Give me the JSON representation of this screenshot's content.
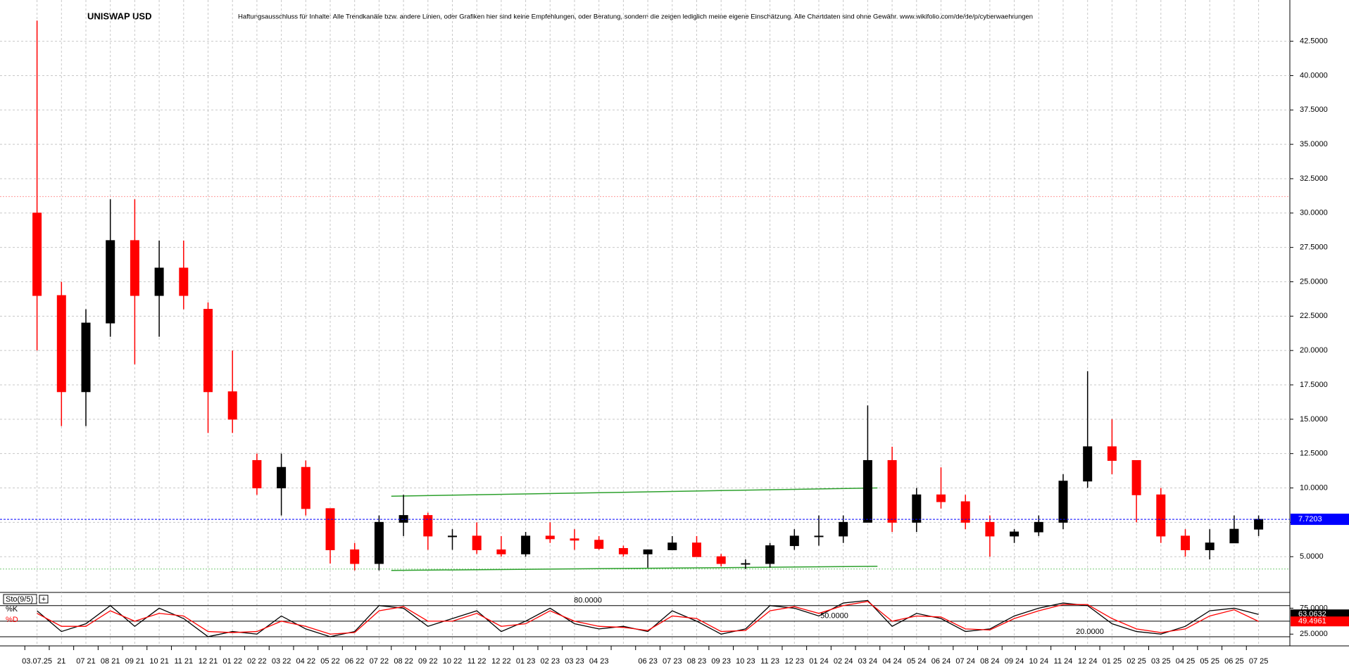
{
  "chart_data": [
    {
      "type": "candlestick",
      "title": "UNISWAP USD",
      "subtitle": "Haftungsausschluss für Inhalte: Alle Trendkanäle bzw. andere Linien, oder Grafiken hier sind keine Empfehlungen, oder Beratung, sondern die zeigen lediglich meine eigene Einschätzung. Alle Chartdaten sind ohne Gewähr.  www.wikifolio.com/de/de/p/cyberwaehrungen",
      "categories": [
        "03.07.25",
        "21",
        "07 21",
        "08 21",
        "09 21",
        "10 21",
        "11 21",
        "12 21",
        "01 22",
        "02 22",
        "03 22",
        "04 22",
        "05 22",
        "06 22",
        "07 22",
        "08 22",
        "09 22",
        "10 22",
        "11 22",
        "12 22",
        "01 23",
        "02 23",
        "03 23",
        "04 23",
        null,
        "06 23",
        "07 23",
        "08 23",
        "09 23",
        "10 23",
        "11 23",
        "12 23",
        "01 24",
        "02 24",
        "03 24",
        "04 24",
        "05 24",
        "06 24",
        "07 24",
        "08 24",
        "09 24",
        "10 24",
        "11 24",
        "12 24",
        "01 25",
        "02 25",
        "03 25",
        "04 25",
        "05 25",
        "06 25",
        "07 25"
      ],
      "open": [
        30,
        24,
        17,
        22,
        28,
        24,
        26,
        23,
        17,
        12,
        10,
        11.5,
        8.5,
        5.5,
        4.5,
        7.5,
        8,
        6.5,
        6.5,
        5.5,
        5.2,
        6.5,
        6.3,
        6.2,
        5.6,
        5.2,
        5.5,
        6.0,
        5.0,
        4.5,
        4.5,
        5.8,
        6.5,
        6.5,
        7.5,
        12,
        7.5,
        9.5,
        9,
        7.5,
        6.5,
        6.8,
        7.5,
        10.5,
        13,
        12,
        9.5,
        6.5,
        5.5,
        6,
        7
      ],
      "high": [
        44,
        25,
        23,
        31,
        31,
        28,
        28,
        23.5,
        20,
        12.5,
        12.5,
        12,
        8.5,
        6,
        8,
        9.5,
        8.2,
        7,
        7.5,
        6.5,
        6.8,
        7.5,
        7,
        6.5,
        5.8,
        5.5,
        6.5,
        6.5,
        5.2,
        4.8,
        6,
        7,
        8,
        8,
        16,
        13,
        10,
        11.5,
        9.5,
        8,
        7,
        8,
        11,
        18.5,
        15,
        12,
        10,
        7,
        7,
        8,
        8
      ],
      "low": [
        20,
        14.5,
        14.5,
        21,
        19,
        21,
        23,
        14,
        14,
        9.5,
        8,
        8,
        4.5,
        4,
        4,
        6.5,
        5.5,
        5.5,
        5.2,
        5,
        5,
        6,
        5.5,
        5.5,
        5,
        4.2,
        5.5,
        5,
        4.3,
        4.1,
        4.2,
        5.5,
        5.8,
        6,
        7.5,
        6.8,
        6.8,
        8.5,
        7,
        5,
        6,
        6.5,
        7,
        10,
        11,
        7.5,
        6,
        5,
        4.8,
        6,
        6.5
      ],
      "close": [
        24,
        17,
        22,
        28,
        24,
        26,
        24,
        17,
        15,
        10,
        11.5,
        8.5,
        5.5,
        4.5,
        7.5,
        8,
        6.5,
        6.5,
        5.5,
        5.2,
        6.5,
        6.3,
        6.2,
        5.6,
        5.2,
        5.5,
        6.0,
        5.0,
        4.5,
        4.5,
        5.8,
        6.5,
        6.5,
        7.5,
        12,
        7.5,
        9.5,
        9,
        7.5,
        6.5,
        6.8,
        7.5,
        10.5,
        13,
        12,
        9.5,
        6.5,
        5.5,
        6,
        7,
        7.7203
      ],
      "up_color": "#000000",
      "down_color": "#ff0000",
      "last_color": "#0000ff",
      "ylim": [
        2.4,
        45.5
      ],
      "yticks": [
        {
          "value": 5,
          "label": "5.0000"
        },
        {
          "value": 7.5,
          "label": "7.5000"
        },
        {
          "value": 10,
          "label": "10.0000"
        },
        {
          "value": 12.5,
          "label": "12.5000"
        },
        {
          "value": 15,
          "label": "15.0000"
        },
        {
          "value": 17.5,
          "label": "17.5000"
        },
        {
          "value": 20,
          "label": "20.0000"
        },
        {
          "value": 22.5,
          "label": "22.5000"
        },
        {
          "value": 25,
          "label": "25.0000"
        },
        {
          "value": 27.5,
          "label": "27.5000"
        },
        {
          "value": 30,
          "label": "30.0000"
        },
        {
          "value": 32.5,
          "label": "32.5000"
        },
        {
          "value": 35,
          "label": "35.0000"
        },
        {
          "value": 37.5,
          "label": "37.5000"
        },
        {
          "value": 40,
          "label": "40.0000"
        },
        {
          "value": 42.5,
          "label": "42.5000"
        }
      ],
      "grid": true,
      "hlines": [
        {
          "value": 31.2,
          "color": "#ff9999"
        },
        {
          "value": 4.1,
          "color": "#77cc77"
        }
      ],
      "trendlines": [
        {
          "x": [
            14.5,
            34.4
          ],
          "y": [
            9.4,
            10.0
          ],
          "color": "#2ca02c"
        },
        {
          "x": [
            14.5,
            34.4
          ],
          "y": [
            4.0,
            4.3
          ],
          "color": "#2ca02c"
        }
      ]
    },
    {
      "type": "line",
      "title": "Sto(9/5)",
      "series": [
        {
          "name": "%K",
          "color": "#000000",
          "values": [
            70,
            30,
            45,
            80,
            40,
            75,
            55,
            20,
            30,
            25,
            60,
            35,
            20,
            30,
            80,
            75,
            40,
            55,
            70,
            30,
            50,
            75,
            45,
            35,
            40,
            30,
            70,
            50,
            25,
            35,
            80,
            75,
            60,
            85,
            90,
            40,
            65,
            55,
            30,
            35,
            60,
            75,
            85,
            80,
            45,
            30,
            25,
            40,
            70,
            75,
            63.0632
          ]
        },
        {
          "name": "%D",
          "color": "#ff0000",
          "values": [
            65,
            40,
            40,
            70,
            50,
            65,
            60,
            30,
            28,
            30,
            50,
            40,
            25,
            28,
            70,
            78,
            50,
            50,
            65,
            40,
            45,
            70,
            50,
            40,
            38,
            32,
            60,
            55,
            30,
            32,
            70,
            78,
            65,
            80,
            88,
            50,
            60,
            58,
            35,
            33,
            55,
            70,
            82,
            82,
            55,
            35,
            28,
            35,
            60,
            72,
            49.4961
          ]
        }
      ],
      "ylim": [
        5,
        100
      ],
      "yticks": [
        {
          "value": 25,
          "label": "25.0000"
        },
        {
          "value": 75,
          "label": "75.0000"
        }
      ],
      "levels": [
        {
          "value": 80,
          "label": "80.0000"
        },
        {
          "value": 50,
          "label": "50.0000"
        },
        {
          "value": 20,
          "label": "20.0000"
        }
      ]
    }
  ]
}
